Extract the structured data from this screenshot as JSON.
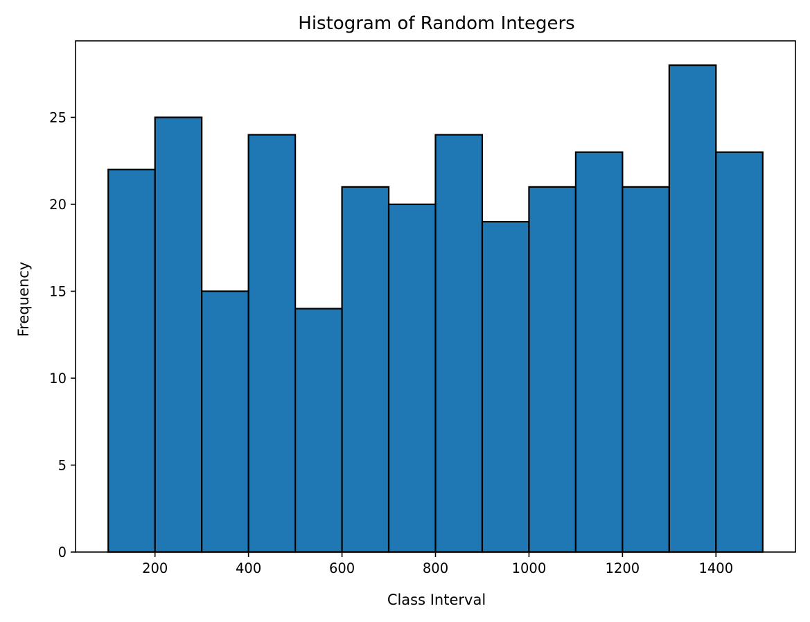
{
  "chart_data": {
    "type": "bar",
    "title": "Histogram of Random Integers",
    "xlabel": "Class Interval",
    "ylabel": "Frequency",
    "bin_edges": [
      100,
      200,
      300,
      400,
      500,
      600,
      700,
      800,
      900,
      1000,
      1100,
      1200,
      1300,
      1400,
      1500
    ],
    "values": [
      22,
      25,
      15,
      24,
      14,
      21,
      20,
      24,
      19,
      21,
      23,
      21,
      28,
      23
    ],
    "xlim": [
      30,
      1570
    ],
    "ylim": [
      0,
      29.4
    ],
    "xticks": [
      200,
      400,
      600,
      800,
      1000,
      1200,
      1400
    ],
    "xtick_labels": [
      "200",
      "400",
      "600",
      "800",
      "1000",
      "1200",
      "1400"
    ],
    "yticks": [
      0,
      5,
      10,
      15,
      20,
      25
    ],
    "ytick_labels": [
      "0",
      "5",
      "10",
      "15",
      "20",
      "25"
    ],
    "bar_color": "#1f77b4",
    "edge_color": "#000000",
    "grid": false,
    "legend": false
  }
}
